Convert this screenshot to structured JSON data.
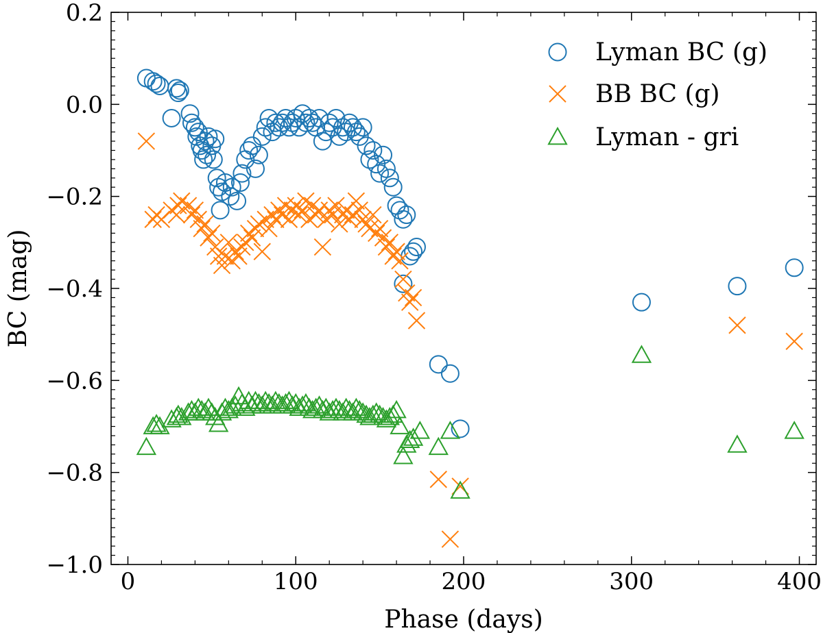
{
  "chart_data": {
    "type": "scatter",
    "title": "",
    "xlabel": "Phase (days)",
    "ylabel": "BC (mag)",
    "xlim": [
      -10,
      410
    ],
    "ylim": [
      -1.0,
      0.2
    ],
    "x_ticks": [
      0,
      100,
      200,
      300,
      400
    ],
    "x_tick_labels": [
      "0",
      "100",
      "200",
      "300",
      "400"
    ],
    "y_ticks": [
      -1.0,
      -0.8,
      -0.6,
      -0.4,
      -0.2,
      0.0,
      0.2
    ],
    "y_tick_labels": [
      "−1.0",
      "−0.8",
      "−0.6",
      "−0.4",
      "−0.2",
      "0.0",
      "0.2"
    ],
    "grid": false,
    "legend_position": "top-right",
    "series": [
      {
        "name": "Lyman BC (g)",
        "marker": "circle",
        "color": "#1f77b4",
        "points": [
          [
            11,
            0.057
          ],
          [
            15,
            0.05
          ],
          [
            17,
            0.045
          ],
          [
            19,
            0.04
          ],
          [
            26,
            -0.03
          ],
          [
            29,
            0.035
          ],
          [
            30,
            0.025
          ],
          [
            31,
            0.03
          ],
          [
            37,
            -0.02
          ],
          [
            38,
            -0.04
          ],
          [
            40,
            -0.05
          ],
          [
            41,
            -0.07
          ],
          [
            42,
            -0.06
          ],
          [
            43,
            -0.09
          ],
          [
            44,
            -0.1
          ],
          [
            45,
            -0.12
          ],
          [
            46,
            -0.08
          ],
          [
            47,
            -0.11
          ],
          [
            48,
            -0.07
          ],
          [
            50,
            -0.09
          ],
          [
            51,
            -0.12
          ],
          [
            52,
            -0.075
          ],
          [
            53,
            -0.16
          ],
          [
            54,
            -0.18
          ],
          [
            55,
            -0.23
          ],
          [
            56,
            -0.19
          ],
          [
            58,
            -0.17
          ],
          [
            61,
            -0.2
          ],
          [
            62,
            -0.18
          ],
          [
            65,
            -0.21
          ],
          [
            67,
            -0.17
          ],
          [
            68,
            -0.15
          ],
          [
            70,
            -0.12
          ],
          [
            72,
            -0.1
          ],
          [
            74,
            -0.09
          ],
          [
            76,
            -0.14
          ],
          [
            78,
            -0.11
          ],
          [
            80,
            -0.07
          ],
          [
            82,
            -0.05
          ],
          [
            84,
            -0.03
          ],
          [
            86,
            -0.06
          ],
          [
            88,
            -0.04
          ],
          [
            90,
            -0.05
          ],
          [
            92,
            -0.04
          ],
          [
            94,
            -0.03
          ],
          [
            96,
            -0.05
          ],
          [
            98,
            -0.04
          ],
          [
            100,
            -0.03
          ],
          [
            102,
            -0.05
          ],
          [
            104,
            -0.02
          ],
          [
            106,
            -0.04
          ],
          [
            108,
            -0.03
          ],
          [
            110,
            -0.04
          ],
          [
            112,
            -0.05
          ],
          [
            114,
            -0.03
          ],
          [
            116,
            -0.08
          ],
          [
            118,
            -0.06
          ],
          [
            120,
            -0.04
          ],
          [
            122,
            -0.05
          ],
          [
            124,
            -0.03
          ],
          [
            126,
            -0.07
          ],
          [
            128,
            -0.05
          ],
          [
            130,
            -0.06
          ],
          [
            132,
            -0.04
          ],
          [
            134,
            -0.05
          ],
          [
            136,
            -0.06
          ],
          [
            138,
            -0.07
          ],
          [
            140,
            -0.05
          ],
          [
            142,
            -0.09
          ],
          [
            144,
            -0.12
          ],
          [
            146,
            -0.1
          ],
          [
            148,
            -0.13
          ],
          [
            150,
            -0.15
          ],
          [
            152,
            -0.11
          ],
          [
            154,
            -0.14
          ],
          [
            156,
            -0.16
          ],
          [
            158,
            -0.18
          ],
          [
            160,
            -0.22
          ],
          [
            162,
            -0.23
          ],
          [
            164,
            -0.25
          ],
          [
            166,
            -0.24
          ],
          [
            168,
            -0.33
          ],
          [
            170,
            -0.32
          ],
          [
            172,
            -0.31
          ],
          [
            164,
            -0.39
          ],
          [
            185,
            -0.565
          ],
          [
            192,
            -0.585
          ],
          [
            198,
            -0.705
          ],
          [
            306,
            -0.43
          ],
          [
            363,
            -0.395
          ],
          [
            397,
            -0.355
          ]
        ]
      },
      {
        "name": "BB BC (g)",
        "marker": "x",
        "color": "#ff7f0e",
        "points": [
          [
            11,
            -0.08
          ],
          [
            15,
            -0.25
          ],
          [
            17,
            -0.24
          ],
          [
            20,
            -0.25
          ],
          [
            26,
            -0.23
          ],
          [
            29,
            -0.24
          ],
          [
            30,
            -0.22
          ],
          [
            32,
            -0.21
          ],
          [
            36,
            -0.22
          ],
          [
            38,
            -0.24
          ],
          [
            40,
            -0.23
          ],
          [
            42,
            -0.25
          ],
          [
            44,
            -0.27
          ],
          [
            46,
            -0.26
          ],
          [
            48,
            -0.29
          ],
          [
            50,
            -0.28
          ],
          [
            52,
            -0.31
          ],
          [
            54,
            -0.33
          ],
          [
            56,
            -0.35
          ],
          [
            58,
            -0.33
          ],
          [
            60,
            -0.3
          ],
          [
            62,
            -0.34
          ],
          [
            64,
            -0.32
          ],
          [
            66,
            -0.33
          ],
          [
            68,
            -0.31
          ],
          [
            70,
            -0.3
          ],
          [
            72,
            -0.28
          ],
          [
            74,
            -0.29
          ],
          [
            76,
            -0.27
          ],
          [
            78,
            -0.26
          ],
          [
            80,
            -0.32
          ],
          [
            82,
            -0.25
          ],
          [
            84,
            -0.27
          ],
          [
            86,
            -0.24
          ],
          [
            88,
            -0.25
          ],
          [
            90,
            -0.23
          ],
          [
            92,
            -0.24
          ],
          [
            94,
            -0.22
          ],
          [
            96,
            -0.25
          ],
          [
            98,
            -0.23
          ],
          [
            100,
            -0.22
          ],
          [
            102,
            -0.24
          ],
          [
            104,
            -0.23
          ],
          [
            106,
            -0.21
          ],
          [
            108,
            -0.25
          ],
          [
            110,
            -0.22
          ],
          [
            112,
            -0.24
          ],
          [
            114,
            -0.23
          ],
          [
            116,
            -0.31
          ],
          [
            118,
            -0.25
          ],
          [
            120,
            -0.23
          ],
          [
            122,
            -0.24
          ],
          [
            124,
            -0.22
          ],
          [
            126,
            -0.26
          ],
          [
            128,
            -0.24
          ],
          [
            130,
            -0.23
          ],
          [
            132,
            -0.25
          ],
          [
            134,
            -0.24
          ],
          [
            136,
            -0.21
          ],
          [
            138,
            -0.23
          ],
          [
            140,
            -0.25
          ],
          [
            142,
            -0.26
          ],
          [
            144,
            -0.27
          ],
          [
            146,
            -0.24
          ],
          [
            148,
            -0.28
          ],
          [
            150,
            -0.27
          ],
          [
            152,
            -0.29
          ],
          [
            154,
            -0.31
          ],
          [
            156,
            -0.3
          ],
          [
            158,
            -0.33
          ],
          [
            160,
            -0.32
          ],
          [
            162,
            -0.34
          ],
          [
            164,
            -0.38
          ],
          [
            166,
            -0.41
          ],
          [
            168,
            -0.43
          ],
          [
            170,
            -0.42
          ],
          [
            172,
            -0.47
          ],
          [
            185,
            -0.815
          ],
          [
            192,
            -0.945
          ],
          [
            198,
            -0.83
          ],
          [
            363,
            -0.48
          ],
          [
            397,
            -0.515
          ]
        ]
      },
      {
        "name": "Lyman - gri",
        "marker": "triangle",
        "color": "#2ca02c",
        "points": [
          [
            11,
            -0.745
          ],
          [
            15,
            -0.7
          ],
          [
            17,
            -0.695
          ],
          [
            19,
            -0.7
          ],
          [
            26,
            -0.685
          ],
          [
            29,
            -0.68
          ],
          [
            30,
            -0.675
          ],
          [
            32,
            -0.68
          ],
          [
            36,
            -0.67
          ],
          [
            38,
            -0.665
          ],
          [
            40,
            -0.67
          ],
          [
            42,
            -0.66
          ],
          [
            44,
            -0.665
          ],
          [
            46,
            -0.67
          ],
          [
            48,
            -0.66
          ],
          [
            50,
            -0.67
          ],
          [
            52,
            -0.68
          ],
          [
            54,
            -0.695
          ],
          [
            56,
            -0.67
          ],
          [
            58,
            -0.66
          ],
          [
            60,
            -0.665
          ],
          [
            62,
            -0.66
          ],
          [
            64,
            -0.655
          ],
          [
            66,
            -0.635
          ],
          [
            68,
            -0.65
          ],
          [
            70,
            -0.66
          ],
          [
            72,
            -0.645
          ],
          [
            74,
            -0.655
          ],
          [
            76,
            -0.645
          ],
          [
            78,
            -0.65
          ],
          [
            80,
            -0.655
          ],
          [
            82,
            -0.645
          ],
          [
            84,
            -0.65
          ],
          [
            86,
            -0.655
          ],
          [
            88,
            -0.645
          ],
          [
            90,
            -0.65
          ],
          [
            92,
            -0.655
          ],
          [
            94,
            -0.65
          ],
          [
            96,
            -0.645
          ],
          [
            98,
            -0.655
          ],
          [
            100,
            -0.65
          ],
          [
            102,
            -0.66
          ],
          [
            104,
            -0.655
          ],
          [
            106,
            -0.65
          ],
          [
            108,
            -0.66
          ],
          [
            110,
            -0.665
          ],
          [
            112,
            -0.66
          ],
          [
            114,
            -0.655
          ],
          [
            116,
            -0.665
          ],
          [
            118,
            -0.66
          ],
          [
            120,
            -0.67
          ],
          [
            122,
            -0.665
          ],
          [
            124,
            -0.66
          ],
          [
            126,
            -0.665
          ],
          [
            128,
            -0.67
          ],
          [
            130,
            -0.66
          ],
          [
            132,
            -0.665
          ],
          [
            134,
            -0.67
          ],
          [
            136,
            -0.66
          ],
          [
            138,
            -0.665
          ],
          [
            140,
            -0.67
          ],
          [
            142,
            -0.675
          ],
          [
            144,
            -0.68
          ],
          [
            146,
            -0.675
          ],
          [
            148,
            -0.67
          ],
          [
            150,
            -0.675
          ],
          [
            152,
            -0.68
          ],
          [
            154,
            -0.685
          ],
          [
            156,
            -0.68
          ],
          [
            158,
            -0.675
          ],
          [
            160,
            -0.665
          ],
          [
            162,
            -0.7
          ],
          [
            164,
            -0.765
          ],
          [
            166,
            -0.74
          ],
          [
            168,
            -0.73
          ],
          [
            170,
            -0.725
          ],
          [
            174,
            -0.71
          ],
          [
            185,
            -0.745
          ],
          [
            192,
            -0.71
          ],
          [
            198,
            -0.84
          ],
          [
            306,
            -0.545
          ],
          [
            363,
            -0.74
          ],
          [
            397,
            -0.71
          ]
        ]
      }
    ]
  }
}
